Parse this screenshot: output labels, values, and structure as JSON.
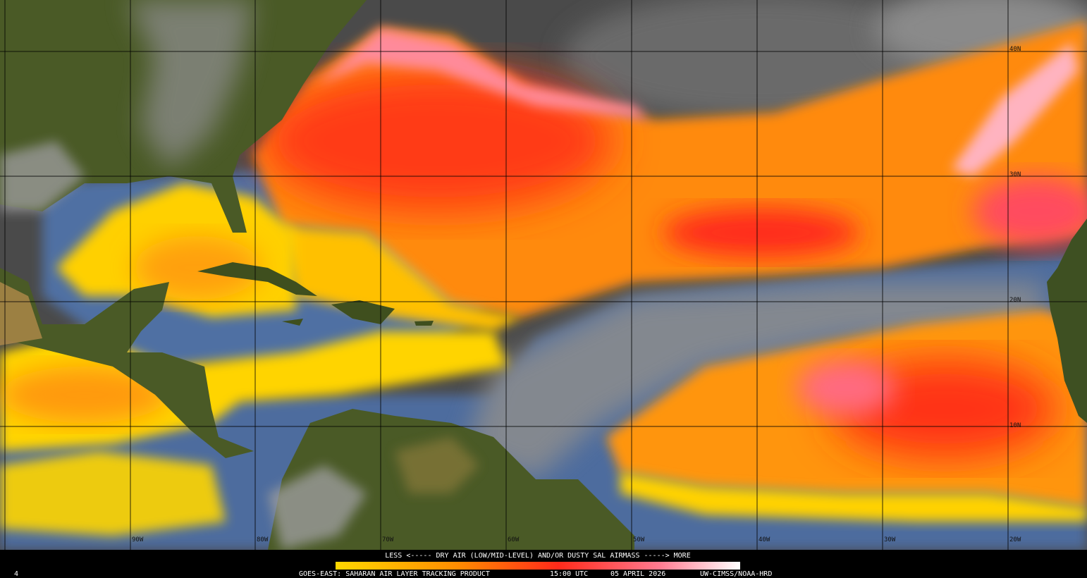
{
  "map": {
    "lat_labels": [
      "40N",
      "30N",
      "20N",
      "10N"
    ],
    "lon_labels": [
      "90W",
      "80W",
      "70W",
      "60W",
      "50W",
      "40W",
      "30W",
      "20W"
    ]
  },
  "colorbar": {
    "caption": "LESS <----- DRY AIR (LOW/MID-LEVEL) AND/OR DUSTY SAL AIRMASS -----> MORE"
  },
  "footer": {
    "frame": "4",
    "product": "GOES-EAST: SAHARAN AIR LAYER TRACKING PRODUCT",
    "time": "15:00 UTC",
    "date": "05 APRIL 2026",
    "credit": "UW-CIMSS/NOAA-HRD"
  }
}
